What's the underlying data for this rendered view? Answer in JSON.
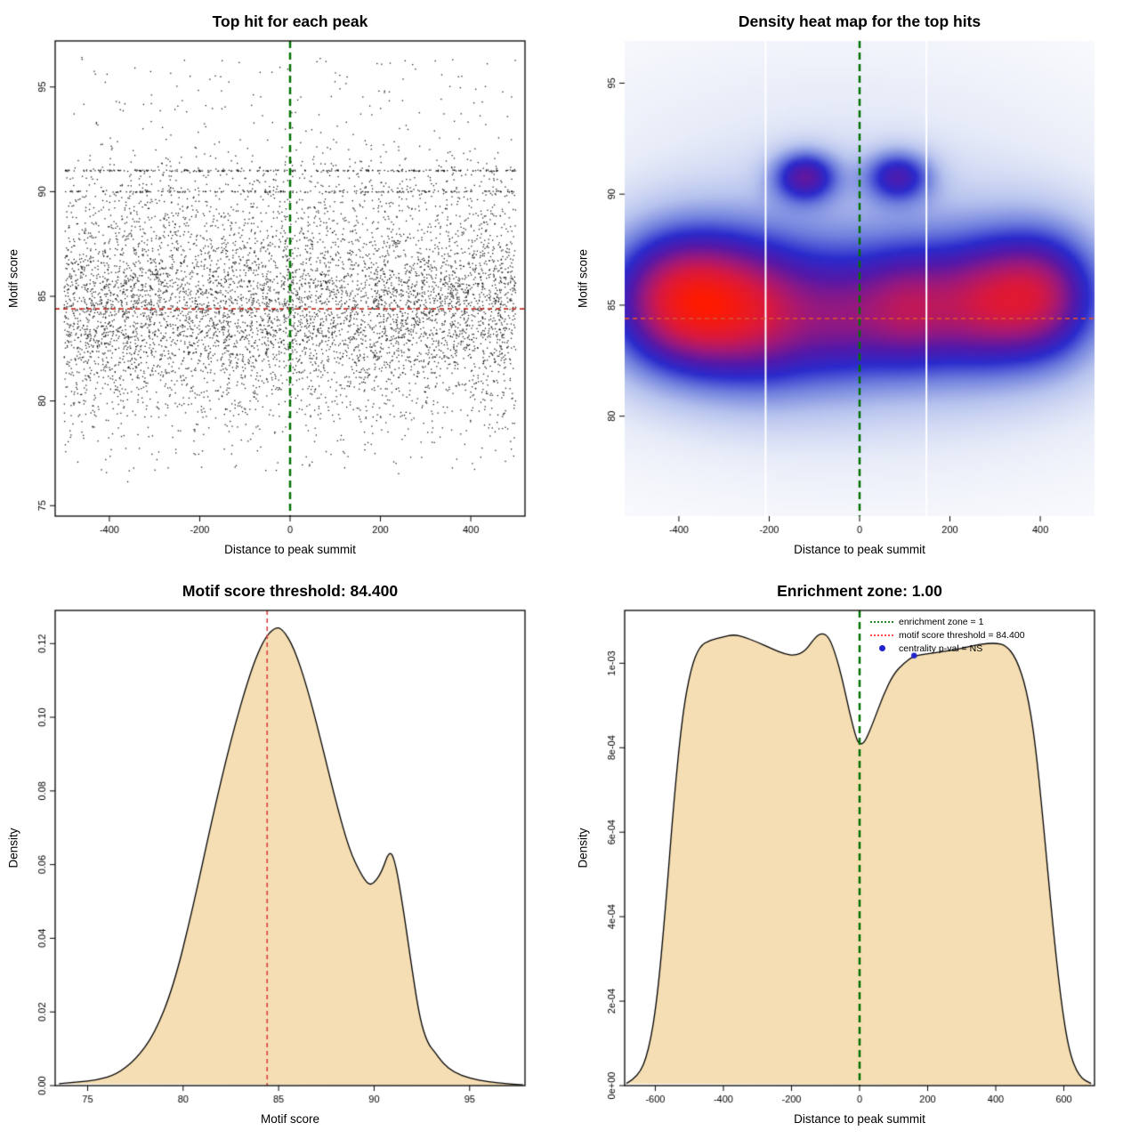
{
  "chart_data": [
    {
      "id": "top-hit-scatter",
      "type": "scatter",
      "title": "Top hit for each peak",
      "xlabel": "Distance to peak summit",
      "ylabel": "Motif score",
      "xlim": [
        -520,
        520
      ],
      "ylim": [
        74.5,
        97.2
      ],
      "xticks": [
        -400,
        -200,
        0,
        200,
        400
      ],
      "xtick_labels": [
        "-400",
        "-200",
        "0",
        "200",
        "400"
      ],
      "yticks": [
        75,
        80,
        85,
        90,
        95
      ],
      "ytick_labels": [
        "75",
        "80",
        "85",
        "90",
        "95"
      ],
      "n_points": 7200,
      "seed": 1337,
      "point_color": "#000000",
      "x_dist": {
        "type": "uniform",
        "min": -500,
        "max": 500
      },
      "y_dist": {
        "mixture": [
          {
            "w": 0.55,
            "type": "normal",
            "mean": 84.3,
            "sd": 2.0
          },
          {
            "w": 0.2,
            "type": "normal",
            "mean": 86.5,
            "sd": 2.8
          },
          {
            "w": 0.08,
            "type": "normal",
            "mean": 81.0,
            "sd": 1.8
          },
          {
            "w": 0.07,
            "type": "uniform",
            "min": 76.5,
            "max": 96.5
          },
          {
            "w": 0.06,
            "type": "discrete",
            "values": [
              91.0,
              90.0
            ],
            "weights": [
              0.55,
              0.45
            ],
            "jitter": 0.035
          },
          {
            "w": 0.04,
            "type": "normal",
            "mean": 89.5,
            "sd": 1.2
          }
        ],
        "clip": [
          75.2,
          96.8
        ]
      },
      "vline": {
        "x": 0,
        "color": "#007000",
        "width": 2.5,
        "dash": [
          8,
          5
        ]
      },
      "hline": {
        "y": 84.4,
        "color": "#c03028",
        "width": 1.6,
        "dash": [
          5,
          4
        ]
      }
    },
    {
      "id": "density-heatmap",
      "type": "heatmap",
      "title": "Density heat map for the top hits",
      "xlabel": "Distance to peak summit",
      "ylabel": "Motif score",
      "xlim": [
        -520,
        520
      ],
      "ylim": [
        75.5,
        96.9
      ],
      "xticks": [
        -400,
        -200,
        0,
        200,
        400
      ],
      "xtick_labels": [
        "-400",
        "-200",
        "0",
        "200",
        "400"
      ],
      "yticks": [
        80,
        85,
        90,
        95
      ],
      "ytick_labels": [
        "80",
        "85",
        "90",
        "95"
      ],
      "gamma": 0.8,
      "components": [
        {
          "x": -420,
          "y": 85.2,
          "sx": 95,
          "sy": 2.1,
          "a": 1.0
        },
        {
          "x": -300,
          "y": 84.9,
          "sx": 85,
          "sy": 2.2,
          "a": 0.72
        },
        {
          "x": -180,
          "y": 84.5,
          "sx": 80,
          "sy": 2.2,
          "a": 0.58
        },
        {
          "x": -40,
          "y": 84.4,
          "sx": 70,
          "sy": 2.0,
          "a": 0.45
        },
        {
          "x": 100,
          "y": 84.8,
          "sx": 75,
          "sy": 1.9,
          "a": 0.7
        },
        {
          "x": 250,
          "y": 85.0,
          "sx": 80,
          "sy": 2.0,
          "a": 0.63
        },
        {
          "x": 395,
          "y": 85.4,
          "sx": 90,
          "sy": 2.0,
          "a": 1.0
        },
        {
          "x": 0,
          "y": 85.0,
          "sx": 470,
          "sy": 3.6,
          "a": 0.36
        },
        {
          "x": 0,
          "y": 85.8,
          "sx": 490,
          "sy": 6.2,
          "a": 0.15
        },
        {
          "x": -80,
          "y": 94.0,
          "sx": 420,
          "sy": 2.8,
          "a": 0.055
        },
        {
          "x": -120,
          "y": 90.8,
          "sx": 50,
          "sy": 0.8,
          "a": 0.8
        },
        {
          "x": 85,
          "y": 90.8,
          "sx": 52,
          "sy": 0.8,
          "a": 0.7
        }
      ],
      "palette": [
        [
          0.0,
          "#ffffff"
        ],
        [
          0.12,
          "#e8ecf8"
        ],
        [
          0.25,
          "#b8c4ee"
        ],
        [
          0.38,
          "#6f7fdd"
        ],
        [
          0.5,
          "#2a2acc"
        ],
        [
          0.62,
          "#5518a8"
        ],
        [
          0.74,
          "#a01878"
        ],
        [
          0.85,
          "#d81840"
        ],
        [
          1.0,
          "#ff1a00"
        ]
      ],
      "white_lines_x": [
        -208,
        148
      ],
      "vline": {
        "x": 0,
        "color": "#007000",
        "width": 2.5,
        "dash": [
          8,
          5
        ]
      },
      "hline": {
        "y": 84.4,
        "color": "#d8502e",
        "width": 1.6,
        "dash": [
          5,
          4
        ]
      }
    },
    {
      "id": "motif-score-density",
      "type": "area",
      "title": "Motif score threshold: 84.400",
      "xlabel": "Motif score",
      "ylabel": "Density",
      "threshold": 84.4,
      "fill": "#f5deb3",
      "xlim": [
        73.3,
        97.9
      ],
      "ylim": [
        0,
        0.129
      ],
      "xticks": [
        75,
        80,
        85,
        90,
        95
      ],
      "xtick_labels": [
        "75",
        "80",
        "85",
        "90",
        "95"
      ],
      "yticks": [
        0,
        0.02,
        0.04,
        0.06,
        0.08,
        0.1,
        0.12
      ],
      "ytick_labels": [
        "0.00",
        "0.02",
        "0.04",
        "0.06",
        "0.08",
        "0.10",
        "0.12"
      ],
      "curve": [
        [
          73.5,
          0.0005
        ],
        [
          74.5,
          0.001
        ],
        [
          75.5,
          0.0015
        ],
        [
          76.5,
          0.003
        ],
        [
          77.5,
          0.007
        ],
        [
          78.5,
          0.014
        ],
        [
          79.5,
          0.027
        ],
        [
          80.5,
          0.048
        ],
        [
          81.5,
          0.072
        ],
        [
          82.5,
          0.094
        ],
        [
          83.5,
          0.112
        ],
        [
          84.2,
          0.121
        ],
        [
          84.8,
          0.1245
        ],
        [
          85.2,
          0.124
        ],
        [
          85.8,
          0.119
        ],
        [
          86.5,
          0.108
        ],
        [
          87.2,
          0.094
        ],
        [
          88.0,
          0.077
        ],
        [
          88.7,
          0.064
        ],
        [
          89.3,
          0.0575
        ],
        [
          89.7,
          0.0545
        ],
        [
          90.0,
          0.055
        ],
        [
          90.4,
          0.058
        ],
        [
          90.8,
          0.064
        ],
        [
          91.1,
          0.061
        ],
        [
          91.5,
          0.049
        ],
        [
          92.0,
          0.031
        ],
        [
          92.4,
          0.018
        ],
        [
          92.8,
          0.0115
        ],
        [
          93.2,
          0.009
        ],
        [
          93.6,
          0.006
        ],
        [
          94.2,
          0.0035
        ],
        [
          95.0,
          0.002
        ],
        [
          96.0,
          0.001
        ],
        [
          97.0,
          0.0005
        ],
        [
          97.8,
          0.0002
        ]
      ],
      "vline": {
        "x": 84.4,
        "color": "#d84040",
        "width": 1.6,
        "dash": [
          5,
          4
        ]
      }
    },
    {
      "id": "enrichment-zone-density",
      "type": "area",
      "title": "Enrichment zone: 1.00",
      "xlabel": "Distance to peak summit",
      "ylabel": "Density",
      "fill": "#f5deb3",
      "xlim": [
        -690,
        690
      ],
      "ylim": [
        0,
        0.001125
      ],
      "xticks": [
        -600,
        -400,
        -200,
        0,
        200,
        400,
        600
      ],
      "xtick_labels": [
        "-600",
        "-400",
        "-200",
        "0",
        "200",
        "400",
        "600"
      ],
      "yticks": [
        0,
        0.0002,
        0.0004,
        0.0006,
        0.0008,
        0.001
      ],
      "ytick_labels": [
        "0e+00",
        "2e-04",
        "4e-04",
        "6e-04",
        "8e-04",
        "1e-03"
      ],
      "curve": [
        [
          -685,
          5e-06
        ],
        [
          -650,
          2e-05
        ],
        [
          -620,
          8e-05
        ],
        [
          -595,
          0.0002
        ],
        [
          -570,
          0.00042
        ],
        [
          -545,
          0.00068
        ],
        [
          -520,
          0.00088
        ],
        [
          -495,
          0.00099
        ],
        [
          -470,
          0.00104
        ],
        [
          -440,
          0.001055
        ],
        [
          -400,
          0.001062
        ],
        [
          -370,
          0.001068
        ],
        [
          -340,
          0.001062
        ],
        [
          -300,
          0.00105
        ],
        [
          -260,
          0.001035
        ],
        [
          -220,
          0.001022
        ],
        [
          -190,
          0.001018
        ],
        [
          -160,
          0.001028
        ],
        [
          -130,
          0.001062
        ],
        [
          -110,
          0.001072
        ],
        [
          -90,
          0.001062
        ],
        [
          -70,
          0.00102
        ],
        [
          -50,
          0.00096
        ],
        [
          -30,
          0.000885
        ],
        [
          -10,
          0.000822
        ],
        [
          0,
          0.000808
        ],
        [
          15,
          0.000812
        ],
        [
          40,
          0.00086
        ],
        [
          70,
          0.000925
        ],
        [
          100,
          0.000975
        ],
        [
          130,
          0.001
        ],
        [
          160,
          0.001018
        ],
        [
          200,
          0.001022
        ],
        [
          250,
          0.001028
        ],
        [
          300,
          0.001035
        ],
        [
          350,
          0.001045
        ],
        [
          400,
          0.001048
        ],
        [
          430,
          0.001042
        ],
        [
          460,
          0.001012
        ],
        [
          490,
          0.00094
        ],
        [
          515,
          0.00082
        ],
        [
          540,
          0.00062
        ],
        [
          565,
          0.0004
        ],
        [
          590,
          0.00021
        ],
        [
          615,
          8e-05
        ],
        [
          645,
          2e-05
        ],
        [
          680,
          5e-06
        ]
      ],
      "vline": {
        "x": 0,
        "color": "#007000",
        "width": 2.5,
        "dash": [
          8,
          5
        ]
      },
      "marker": {
        "x": 160,
        "y": 0.001018,
        "color": "#2222cc"
      },
      "legend": [
        {
          "label": "enrichment zone = 1",
          "color": "#228B22",
          "style": "dotted-line"
        },
        {
          "label": "motif score threshold = 84.400",
          "color": "#ff5050",
          "style": "dotted-line"
        },
        {
          "label": "centrality p-val = NS",
          "color": "#2222cc",
          "style": "point"
        }
      ]
    }
  ]
}
